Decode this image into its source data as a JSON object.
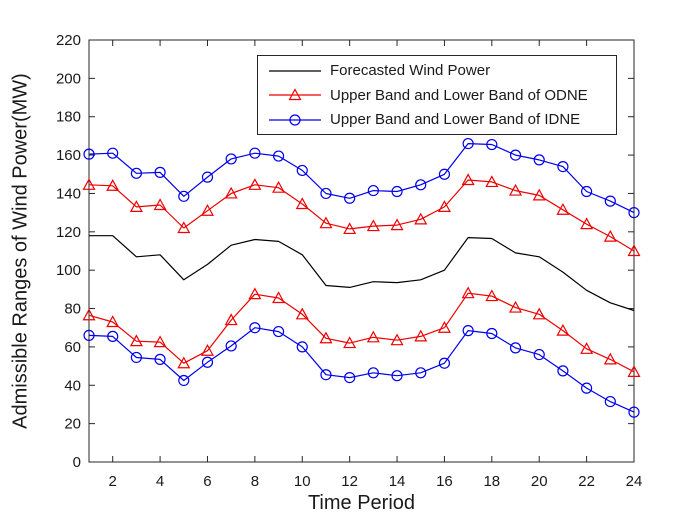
{
  "chart_data": {
    "type": "line",
    "title": "",
    "xlabel": "Time Period",
    "ylabel": "Admissible Ranges of Wind Power(MW)",
    "xlim": [
      1,
      24
    ],
    "ylim": [
      0,
      220
    ],
    "xticks": [
      2,
      4,
      6,
      8,
      10,
      12,
      14,
      16,
      18,
      20,
      22,
      24
    ],
    "yticks": [
      0,
      20,
      40,
      60,
      80,
      100,
      120,
      140,
      160,
      180,
      200,
      220
    ],
    "grid": false,
    "axis_color": "#262626",
    "legend_position": "inside-top-center",
    "x": [
      1,
      2,
      3,
      4,
      5,
      6,
      7,
      8,
      9,
      10,
      11,
      12,
      13,
      14,
      15,
      16,
      17,
      18,
      19,
      20,
      21,
      22,
      23,
      24
    ],
    "series": [
      {
        "name": "Forecasted Wind Power",
        "color": "#000000",
        "marker": "none",
        "values": [
          118,
          118,
          107,
          108,
          95,
          103,
          113,
          116,
          115,
          108,
          92,
          91,
          94,
          93.5,
          95,
          100,
          117,
          116.5,
          109,
          107,
          99,
          89.5,
          83,
          79
        ]
      },
      {
        "name": "Upper Band of ODNE",
        "color": "#ee0000",
        "marker": "triangle",
        "values": [
          144.5,
          144,
          133,
          134,
          122,
          131,
          140,
          144.5,
          143,
          134.5,
          124.5,
          121.5,
          123,
          123.5,
          126.5,
          133,
          147,
          146,
          141.5,
          139,
          131.5,
          124,
          117.5,
          110
        ]
      },
      {
        "name": "Lower Band of ODNE",
        "color": "#ee0000",
        "marker": "triangle",
        "values": [
          76.5,
          73,
          63,
          62.5,
          51.5,
          58,
          74,
          87.5,
          85.5,
          77,
          64.5,
          62,
          65,
          63.5,
          65.5,
          70,
          88,
          86.5,
          80.5,
          77,
          68.5,
          59,
          53.5,
          47
        ]
      },
      {
        "name": "Upper Band of IDNE",
        "color": "#0000ee",
        "marker": "circle",
        "values": [
          160.5,
          161,
          150.5,
          151,
          138.5,
          148.5,
          158,
          161,
          159.5,
          152,
          140,
          137.5,
          141.5,
          141,
          144.5,
          150,
          166,
          165.5,
          160,
          157.5,
          154,
          141,
          136,
          130
        ]
      },
      {
        "name": "Lower Band of IDNE",
        "color": "#0000ee",
        "marker": "circle",
        "values": [
          66,
          65.5,
          54.5,
          53.5,
          42.5,
          52,
          60.5,
          70,
          68,
          60,
          45.5,
          44,
          46.5,
          45,
          46.5,
          51.5,
          68.5,
          67,
          59.5,
          56,
          47.5,
          38.5,
          31.5,
          26
        ]
      }
    ],
    "legend": [
      {
        "label": "Forecasted Wind Power",
        "color": "#000000",
        "marker": "none"
      },
      {
        "label": "Upper Band and Lower Band of ODNE",
        "color": "#ee0000",
        "marker": "triangle"
      },
      {
        "label": "Upper Band and Lower Band of IDNE",
        "color": "#0000ee",
        "marker": "circle"
      }
    ]
  }
}
